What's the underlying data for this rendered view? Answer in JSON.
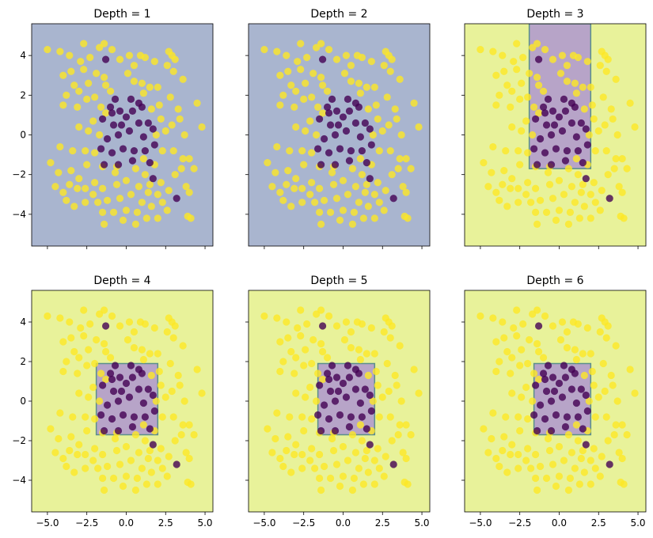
{
  "colors": {
    "region_positive": "#e8f29a",
    "region_negative": "#a9b5cf",
    "region_inner": "#b7a4c8",
    "region_edge": "#5a8f8a",
    "point_yellow": "#fde725",
    "point_purple": "#440154",
    "axis": "#000000"
  },
  "chart_data": [
    {
      "type": "scatter",
      "title": "Depth = 1",
      "xlim": [
        -6.0,
        5.5
      ],
      "ylim": [
        -5.6,
        5.6
      ],
      "xticks": [
        -5.0,
        -2.5,
        0.0,
        2.5,
        5.0
      ],
      "yticks": [
        4,
        2,
        0,
        -2,
        -4
      ],
      "show_xticklabels": false,
      "show_yticklabels": true,
      "regions": [
        {
          "fill": "negative",
          "x": [
            -6.0,
            5.5
          ],
          "y": [
            -5.6,
            5.6
          ]
        }
      ]
    },
    {
      "type": "scatter",
      "title": "Depth = 2",
      "xlim": [
        -6.0,
        5.5
      ],
      "ylim": [
        -5.6,
        5.6
      ],
      "xticks": [
        -5.0,
        -2.5,
        0.0,
        2.5,
        5.0
      ],
      "yticks": [
        4,
        2,
        0,
        -2,
        -4
      ],
      "show_xticklabels": false,
      "show_yticklabels": false,
      "regions": [
        {
          "fill": "negative",
          "x": [
            -6.0,
            5.5
          ],
          "y": [
            -5.6,
            5.6
          ]
        }
      ]
    },
    {
      "type": "scatter",
      "title": "Depth = 3",
      "xlim": [
        -6.0,
        5.5
      ],
      "ylim": [
        -5.6,
        5.6
      ],
      "xticks": [
        -5.0,
        -2.5,
        0.0,
        2.5,
        5.0
      ],
      "yticks": [
        4,
        2,
        0,
        -2,
        -4
      ],
      "show_xticklabels": false,
      "show_yticklabels": false,
      "regions": [
        {
          "fill": "positive",
          "x": [
            -6.0,
            5.5
          ],
          "y": [
            -5.6,
            5.6
          ]
        },
        {
          "fill": "inner",
          "x": [
            -1.9,
            2.0
          ],
          "y": [
            -1.7,
            5.6
          ]
        }
      ]
    },
    {
      "type": "scatter",
      "title": "Depth = 4",
      "xlim": [
        -6.0,
        5.5
      ],
      "ylim": [
        -5.6,
        5.6
      ],
      "xticks": [
        -5.0,
        -2.5,
        0.0,
        2.5,
        5.0
      ],
      "yticks": [
        4,
        2,
        0,
        -2,
        -4
      ],
      "show_xticklabels": true,
      "show_yticklabels": true,
      "regions": [
        {
          "fill": "positive",
          "x": [
            -6.0,
            5.5
          ],
          "y": [
            -5.6,
            5.6
          ]
        },
        {
          "fill": "inner",
          "x": [
            -1.9,
            2.0
          ],
          "y": [
            -1.7,
            1.9
          ]
        }
      ]
    },
    {
      "type": "scatter",
      "title": "Depth = 5",
      "xlim": [
        -6.0,
        5.5
      ],
      "ylim": [
        -5.6,
        5.6
      ],
      "xticks": [
        -5.0,
        -2.5,
        0.0,
        2.5,
        5.0
      ],
      "yticks": [
        4,
        2,
        0,
        -2,
        -4
      ],
      "show_xticklabels": true,
      "show_yticklabels": false,
      "regions": [
        {
          "fill": "positive",
          "x": [
            -6.0,
            5.5
          ],
          "y": [
            -5.6,
            5.6
          ]
        },
        {
          "fill": "inner",
          "x": [
            -1.6,
            2.0
          ],
          "y": [
            -1.7,
            1.9
          ]
        }
      ]
    },
    {
      "type": "scatter",
      "title": "Depth = 6",
      "xlim": [
        -6.0,
        5.5
      ],
      "ylim": [
        -5.6,
        5.6
      ],
      "xticks": [
        -5.0,
        -2.5,
        0.0,
        2.5,
        5.0
      ],
      "yticks": [
        4,
        2,
        0,
        -2,
        -4
      ],
      "show_xticklabels": true,
      "show_yticklabels": false,
      "regions": [
        {
          "fill": "positive",
          "x": [
            -6.0,
            5.5
          ],
          "y": [
            -5.6,
            5.6
          ]
        },
        {
          "fill": "inner",
          "x": [
            -1.6,
            2.0
          ],
          "y": [
            -1.7,
            1.9
          ]
        }
      ]
    }
  ],
  "points": {
    "yellow": [
      [
        -5.0,
        4.3
      ],
      [
        -4.2,
        4.2
      ],
      [
        -3.6,
        4.0
      ],
      [
        -2.7,
        4.6
      ],
      [
        -2.3,
        3.9
      ],
      [
        -1.7,
        4.4
      ],
      [
        -1.4,
        4.6
      ],
      [
        -0.9,
        4.3
      ],
      [
        0.5,
        3.5
      ],
      [
        0.9,
        4.0
      ],
      [
        1.2,
        3.9
      ],
      [
        2.7,
        4.2
      ],
      [
        2.9,
        4.0
      ],
      [
        3.1,
        3.8
      ],
      [
        2.6,
        3.5
      ],
      [
        3.0,
        3.2
      ],
      [
        -4.0,
        3.0
      ],
      [
        -3.5,
        3.2
      ],
      [
        -3.3,
        2.5
      ],
      [
        -3.0,
        2.2
      ],
      [
        -2.7,
        3.3
      ],
      [
        -2.4,
        2.6
      ],
      [
        -1.9,
        3.1
      ],
      [
        -1.4,
        2.9
      ],
      [
        -1.3,
        2.5
      ],
      [
        0.1,
        3.1
      ],
      [
        0.5,
        2.7
      ],
      [
        1.0,
        2.6
      ],
      [
        1.5,
        2.4
      ],
      [
        2.0,
        2.4
      ],
      [
        3.6,
        2.8
      ],
      [
        2.8,
        1.9
      ],
      [
        3.3,
        1.3
      ],
      [
        4.5,
        1.6
      ],
      [
        -4.0,
        1.5
      ],
      [
        -3.1,
        1.4
      ],
      [
        -2.5,
        1.8
      ],
      [
        -2.0,
        1.9
      ],
      [
        -1.3,
        1.1
      ],
      [
        -1.6,
        1.4
      ],
      [
        1.6,
        1.3
      ],
      [
        2.1,
        1.5
      ],
      [
        2.2,
        0.8
      ],
      [
        2.9,
        0.5
      ],
      [
        3.4,
        0.8
      ],
      [
        -3.0,
        0.4
      ],
      [
        -2.4,
        0.2
      ],
      [
        -1.7,
        0.0
      ],
      [
        2.5,
        0.2
      ],
      [
        3.7,
        0.0
      ],
      [
        -4.2,
        -0.6
      ],
      [
        -3.4,
        -0.8
      ],
      [
        -2.6,
        -0.8
      ],
      [
        -2.0,
        -0.9
      ],
      [
        -2.5,
        -1.5
      ],
      [
        2.3,
        -0.8
      ],
      [
        3.0,
        -0.8
      ],
      [
        3.6,
        -1.2
      ],
      [
        1.8,
        -1.5
      ],
      [
        -4.3,
        -1.9
      ],
      [
        -3.5,
        -1.8
      ],
      [
        -3.0,
        -2.2
      ],
      [
        -2.0,
        -2.4
      ],
      [
        -1.5,
        -1.6
      ],
      [
        -0.7,
        -1.9
      ],
      [
        1.2,
        -2.0
      ],
      [
        1.5,
        -2.5
      ],
      [
        2.2,
        -2.4
      ],
      [
        3.1,
        -2.0
      ],
      [
        3.5,
        -1.7
      ],
      [
        4.3,
        -1.7
      ],
      [
        -4.5,
        -2.6
      ],
      [
        -4.0,
        -2.9
      ],
      [
        -3.6,
        -2.5
      ],
      [
        -3.1,
        -2.7
      ],
      [
        -2.6,
        -2.7
      ],
      [
        -2.1,
        -3.0
      ],
      [
        -1.5,
        -2.7
      ],
      [
        -0.6,
        -2.5
      ],
      [
        0.0,
        -2.3
      ],
      [
        0.8,
        -2.6
      ],
      [
        1.4,
        -2.9
      ],
      [
        2.0,
        -3.0
      ],
      [
        2.7,
        -2.8
      ],
      [
        3.8,
        -2.6
      ],
      [
        4.0,
        -2.9
      ],
      [
        -3.8,
        -3.3
      ],
      [
        -3.3,
        -3.6
      ],
      [
        -2.6,
        -3.4
      ],
      [
        -1.8,
        -3.4
      ],
      [
        -1.2,
        -3.3
      ],
      [
        -0.4,
        -3.2
      ],
      [
        0.3,
        -3.0
      ],
      [
        1.0,
        -3.4
      ],
      [
        1.6,
        -3.6
      ],
      [
        2.3,
        -3.4
      ],
      [
        2.6,
        -3.8
      ],
      [
        -1.5,
        -3.9
      ],
      [
        -0.8,
        -3.9
      ],
      [
        0.0,
        -3.8
      ],
      [
        0.7,
        -3.9
      ],
      [
        1.3,
        -4.2
      ],
      [
        2.0,
        -4.2
      ],
      [
        -1.4,
        -4.5
      ],
      [
        -0.2,
        -4.3
      ],
      [
        0.6,
        -4.5
      ],
      [
        3.9,
        -4.1
      ],
      [
        4.1,
        -4.2
      ],
      [
        4.8,
        0.4
      ],
      [
        -2.1,
        0.7
      ],
      [
        1.9,
        0.0
      ],
      [
        -1.0,
        2.2
      ],
      [
        1.1,
        2.1
      ],
      [
        -0.6,
        -1.6
      ],
      [
        0.6,
        -1.7
      ],
      [
        -3.8,
        2.0
      ],
      [
        -2.9,
        3.7
      ],
      [
        0.2,
        4.0
      ],
      [
        1.8,
        3.7
      ],
      [
        -0.4,
        3.8
      ],
      [
        4.0,
        -1.2
      ],
      [
        -4.8,
        -1.4
      ],
      [
        1.1,
        -1.2
      ]
    ],
    "purple": [
      [
        -1.3,
        3.8
      ],
      [
        -0.7,
        1.8
      ],
      [
        0.3,
        1.8
      ],
      [
        -1.0,
        1.4
      ],
      [
        -0.4,
        1.2
      ],
      [
        0.4,
        1.2
      ],
      [
        1.0,
        1.4
      ],
      [
        -1.5,
        0.8
      ],
      [
        -0.8,
        0.5
      ],
      [
        0.0,
        0.9
      ],
      [
        0.8,
        0.6
      ],
      [
        1.4,
        0.6
      ],
      [
        -1.2,
        -0.2
      ],
      [
        -0.5,
        0.0
      ],
      [
        0.2,
        0.2
      ],
      [
        1.1,
        -0.1
      ],
      [
        1.7,
        0.3
      ],
      [
        -1.6,
        -0.7
      ],
      [
        -0.9,
        -0.9
      ],
      [
        -0.2,
        -0.7
      ],
      [
        0.5,
        -0.8
      ],
      [
        1.2,
        -0.8
      ],
      [
        1.8,
        -0.5
      ],
      [
        -1.4,
        -1.5
      ],
      [
        -0.5,
        -1.5
      ],
      [
        0.4,
        -1.3
      ],
      [
        1.5,
        -1.4
      ],
      [
        3.2,
        -3.2
      ],
      [
        1.7,
        -2.2
      ],
      [
        -0.9,
        1.1
      ],
      [
        0.8,
        1.6
      ],
      [
        -0.3,
        0.5
      ]
    ]
  }
}
